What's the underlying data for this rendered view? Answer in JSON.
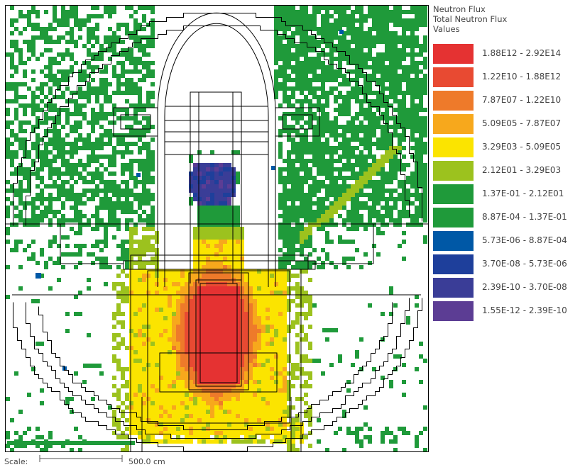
{
  "legend": {
    "title_line1": "Neutron Flux",
    "title_line2": "Total Neutron Flux",
    "title_line3": "Values",
    "entries": [
      {
        "label": "1.88E12 - 2.92E14",
        "color": "#e53232"
      },
      {
        "label": "1.22E10 - 1.88E12",
        "color": "#e84a32"
      },
      {
        "label": "7.87E07 - 1.22E10",
        "color": "#ee7a2a"
      },
      {
        "label": "5.09E05 - 7.87E07",
        "color": "#f7a81c"
      },
      {
        "label": "3.29E03 - 5.09E05",
        "color": "#fbe400"
      },
      {
        "label": "2.12E01 - 3.29E03",
        "color": "#9cc21e"
      },
      {
        "label": "1.37E-01 - 2.12E01",
        "color": "#1f9a3a"
      },
      {
        "label": "8.87E-04 - 1.37E-01",
        "color": "#1f9a3a"
      },
      {
        "label": "5.73E-06 - 8.87E-04",
        "color": "#0058a6"
      },
      {
        "label": "3.70E-08 - 5.73E-06",
        "color": "#1e3f9b"
      },
      {
        "label": "2.39E-10 - 3.70E-08",
        "color": "#3a3d97"
      },
      {
        "label": "1.55E-12 - 2.39E-10",
        "color": "#5c3d94"
      }
    ]
  },
  "scale": {
    "label": "Scale:",
    "value": "500.0 cm"
  }
}
